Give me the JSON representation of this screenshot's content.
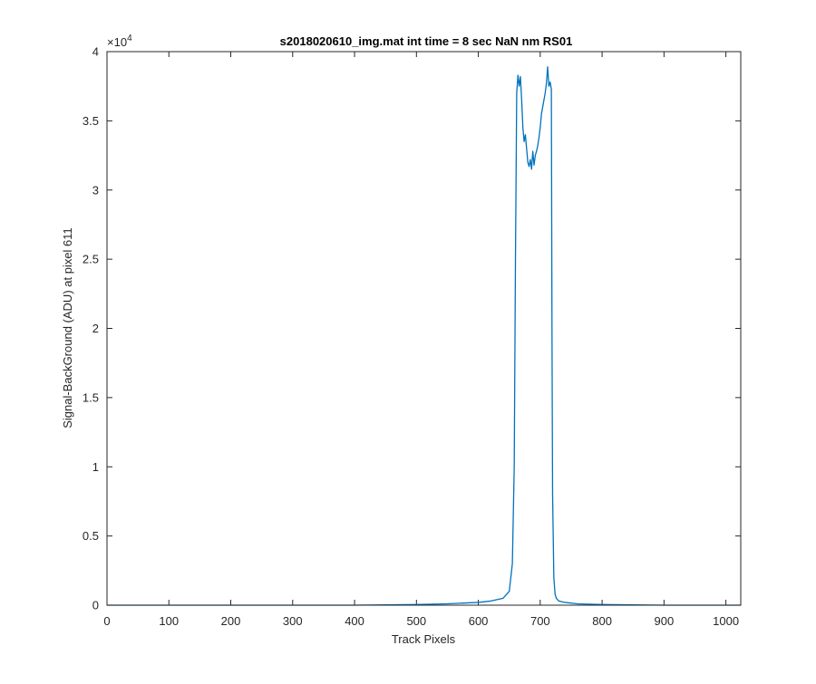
{
  "chart_data": {
    "type": "line",
    "title": "s2018020610_img.mat int time = 8 sec  NaN nm RS01",
    "xlabel": "Track Pixels",
    "ylabel": "Signal-BackGround (ADU) at pixel 611",
    "xlim": [
      0,
      1024
    ],
    "ylim": [
      0,
      40000
    ],
    "y_exponent_label": "×10",
    "y_exponent_power": "4",
    "x_ticks": [
      0,
      100,
      200,
      300,
      400,
      500,
      600,
      700,
      800,
      900,
      1000
    ],
    "x_tick_labels": [
      "0",
      "100",
      "200",
      "300",
      "400",
      "500",
      "600",
      "700",
      "800",
      "900",
      "1000"
    ],
    "y_ticks": [
      0,
      5000,
      10000,
      15000,
      20000,
      25000,
      30000,
      35000,
      40000
    ],
    "y_tick_labels": [
      "0",
      "0.5",
      "1",
      "1.5",
      "2",
      "2.5",
      "3",
      "3.5",
      "4"
    ],
    "grid": false,
    "line_color": "#0072BD",
    "series": [
      {
        "x": [
          0,
          100,
          200,
          300,
          400,
          500,
          550,
          600,
          620,
          640,
          650,
          655,
          658,
          660,
          662,
          664,
          666,
          668,
          670,
          672,
          674,
          676,
          678,
          680,
          682,
          684,
          686,
          688,
          690,
          692,
          694,
          696,
          698,
          700,
          702,
          704,
          706,
          708,
          710,
          712,
          714,
          716,
          718,
          719,
          720,
          722,
          724,
          726,
          730,
          740,
          760,
          800,
          900,
          1000,
          1024
        ],
        "y": [
          0,
          0,
          0,
          0,
          0,
          50,
          100,
          200,
          300,
          500,
          1000,
          3000,
          10000,
          25000,
          37000,
          38300,
          37500,
          38200,
          36500,
          34500,
          33500,
          34000,
          33000,
          32000,
          31700,
          32200,
          31500,
          32800,
          31800,
          32500,
          32800,
          33200,
          33800,
          34500,
          35500,
          36000,
          36500,
          37000,
          37700,
          38900,
          37500,
          37800,
          37300,
          20000,
          8000,
          2000,
          800,
          500,
          300,
          200,
          100,
          50,
          0,
          0,
          0
        ]
      }
    ]
  }
}
